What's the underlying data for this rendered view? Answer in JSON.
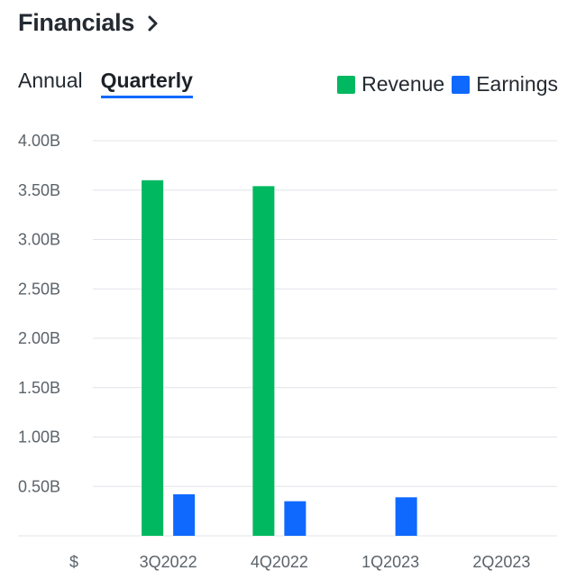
{
  "header": {
    "title": "Financials"
  },
  "tabs": [
    {
      "label": "Annual",
      "active": false
    },
    {
      "label": "Quarterly",
      "active": true
    }
  ],
  "legend": [
    {
      "label": "Revenue",
      "color": "#00b860"
    },
    {
      "label": "Earnings",
      "color": "#0f69ff"
    }
  ],
  "chart_data": {
    "type": "bar",
    "categories": [
      "3Q2022",
      "4Q2022",
      "1Q2023",
      "2Q2023"
    ],
    "series": [
      {
        "name": "Revenue",
        "color": "#00b860",
        "values": [
          3.6,
          3.54,
          null,
          null
        ]
      },
      {
        "name": "Earnings",
        "color": "#0f69ff",
        "values": [
          0.42,
          0.35,
          0.39,
          null
        ]
      }
    ],
    "unit_label": "$",
    "ylim": [
      0,
      4.0
    ],
    "yticks": [
      "0.50B",
      "1.00B",
      "1.50B",
      "2.00B",
      "2.50B",
      "3.00B",
      "3.50B",
      "4.00B"
    ],
    "ytick_values": [
      0.5,
      1.0,
      1.5,
      2.0,
      2.5,
      3.0,
      3.5,
      4.0
    ],
    "grid": true,
    "legend_position": "top-right"
  }
}
